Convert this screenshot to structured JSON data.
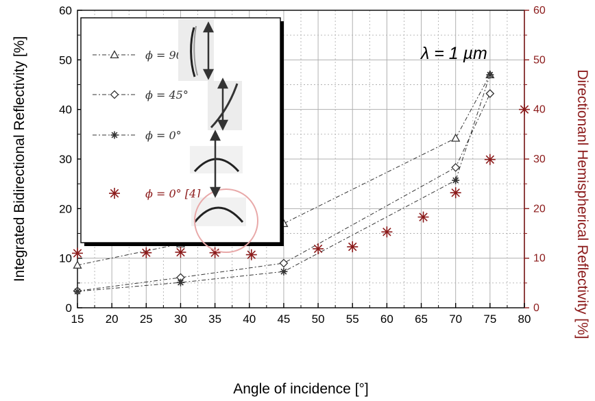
{
  "chart_data": {
    "type": "scatter",
    "annotation": "λ = 1 µm",
    "xlabel": "Angle of incidence [°]",
    "ylabel_left": "Integrated Bidirectional Reflectivity [%]",
    "ylabel_right": "Directionanl Hemispherical Reflectivity [%]",
    "xlim": [
      15,
      80
    ],
    "ylim_left": [
      0,
      60
    ],
    "ylim_right": [
      0,
      60
    ],
    "x_ticks": [
      15,
      20,
      25,
      30,
      35,
      40,
      45,
      50,
      55,
      60,
      65,
      70,
      75,
      80
    ],
    "x_tick_labels": [
      "15",
      "20",
      "25",
      "30",
      "35",
      "40",
      "45",
      "50",
      "55",
      "60",
      "65",
      "70",
      "75",
      "80"
    ],
    "y_ticks": [
      0,
      10,
      20,
      30,
      40,
      50,
      60
    ],
    "y_tick_labels": [
      "0",
      "10",
      "20",
      "30",
      "40",
      "50",
      "60"
    ],
    "grid": true,
    "legend_position": "top-left",
    "series": [
      {
        "name": "ϕ = 90°",
        "axis": "left",
        "marker": "triangle",
        "line": "dash-dot",
        "color": "#333333",
        "x": [
          15,
          30,
          45,
          70,
          75
        ],
        "y": [
          8.6,
          12.9,
          17.0,
          34.2,
          47.0
        ]
      },
      {
        "name": "ϕ = 45°",
        "axis": "left",
        "marker": "diamond",
        "line": "dash-dot",
        "color": "#333333",
        "x": [
          15,
          30,
          45,
          70,
          75
        ],
        "y": [
          3.4,
          6.1,
          9.0,
          28.3,
          43.2
        ]
      },
      {
        "name": "ϕ = 0°",
        "axis": "left",
        "marker": "asterisk",
        "line": "dash-dot",
        "color": "#333333",
        "x": [
          15,
          30,
          45,
          70,
          75
        ],
        "y": [
          3.3,
          5.1,
          7.3,
          25.7,
          47.0
        ]
      },
      {
        "name": "ϕ = 0° [4]",
        "axis": "right",
        "marker": "asterisk",
        "line": "none",
        "color": "#8b1a1a",
        "x": [
          15,
          25,
          30,
          35,
          40.3,
          50,
          55,
          60,
          65.3,
          70,
          75,
          80
        ],
        "y": [
          11.0,
          11.1,
          11.2,
          11.1,
          10.7,
          11.9,
          12.3,
          15.3,
          18.3,
          23.2,
          29.9,
          40.0
        ]
      }
    ]
  },
  "colors": {
    "axis_left": "#000000",
    "axis_right": "#8b1a1a",
    "grid": "#b0b0b0"
  }
}
